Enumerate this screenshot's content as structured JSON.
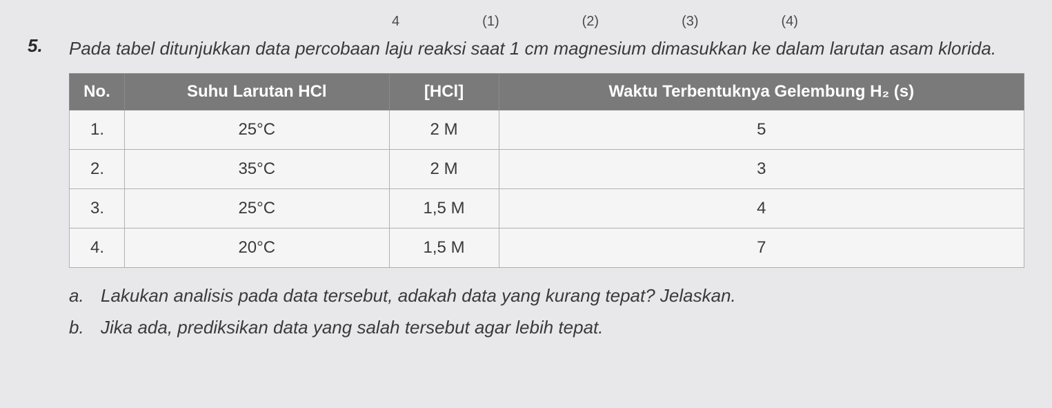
{
  "top_options": {
    "opt0": "4",
    "opt1": "(1)",
    "opt2": "(2)",
    "opt3": "(3)",
    "opt4": "(4)"
  },
  "question": {
    "number": "5.",
    "text": "Pada tabel ditunjukkan data percobaan laju reaksi saat 1 cm magnesium dimasukkan ke dalam larutan asam klorida."
  },
  "table": {
    "headers": {
      "col0": "No.",
      "col1": "Suhu Larutan HCl",
      "col2": "[HCl]",
      "col3": "Waktu Terbentuknya Gelembung H₂ (s)"
    },
    "rows": [
      {
        "no": "1.",
        "suhu": "25°C",
        "hcl": "2 M",
        "waktu": "5"
      },
      {
        "no": "2.",
        "suhu": "35°C",
        "hcl": "2 M",
        "waktu": "3"
      },
      {
        "no": "3.",
        "suhu": "25°C",
        "hcl": "1,5 M",
        "waktu": "4"
      },
      {
        "no": "4.",
        "suhu": "20°C",
        "hcl": "1,5 M",
        "waktu": "7"
      }
    ]
  },
  "sub_questions": {
    "a": {
      "letter": "a.",
      "text": "Lakukan analisis pada data tersebut, adakah data yang kurang tepat? Jelaskan."
    },
    "b": {
      "letter": "b.",
      "text": "Jika ada, prediksikan data yang salah tersebut agar lebih tepat."
    }
  },
  "styling": {
    "background_color": "#e8e8ea",
    "header_bg_color": "#7a7a7a",
    "header_text_color": "#ffffff",
    "cell_border_color": "#b0b0b0",
    "text_color": "#3a3a3a",
    "body_font_size": 26,
    "table_font_size": 24
  }
}
